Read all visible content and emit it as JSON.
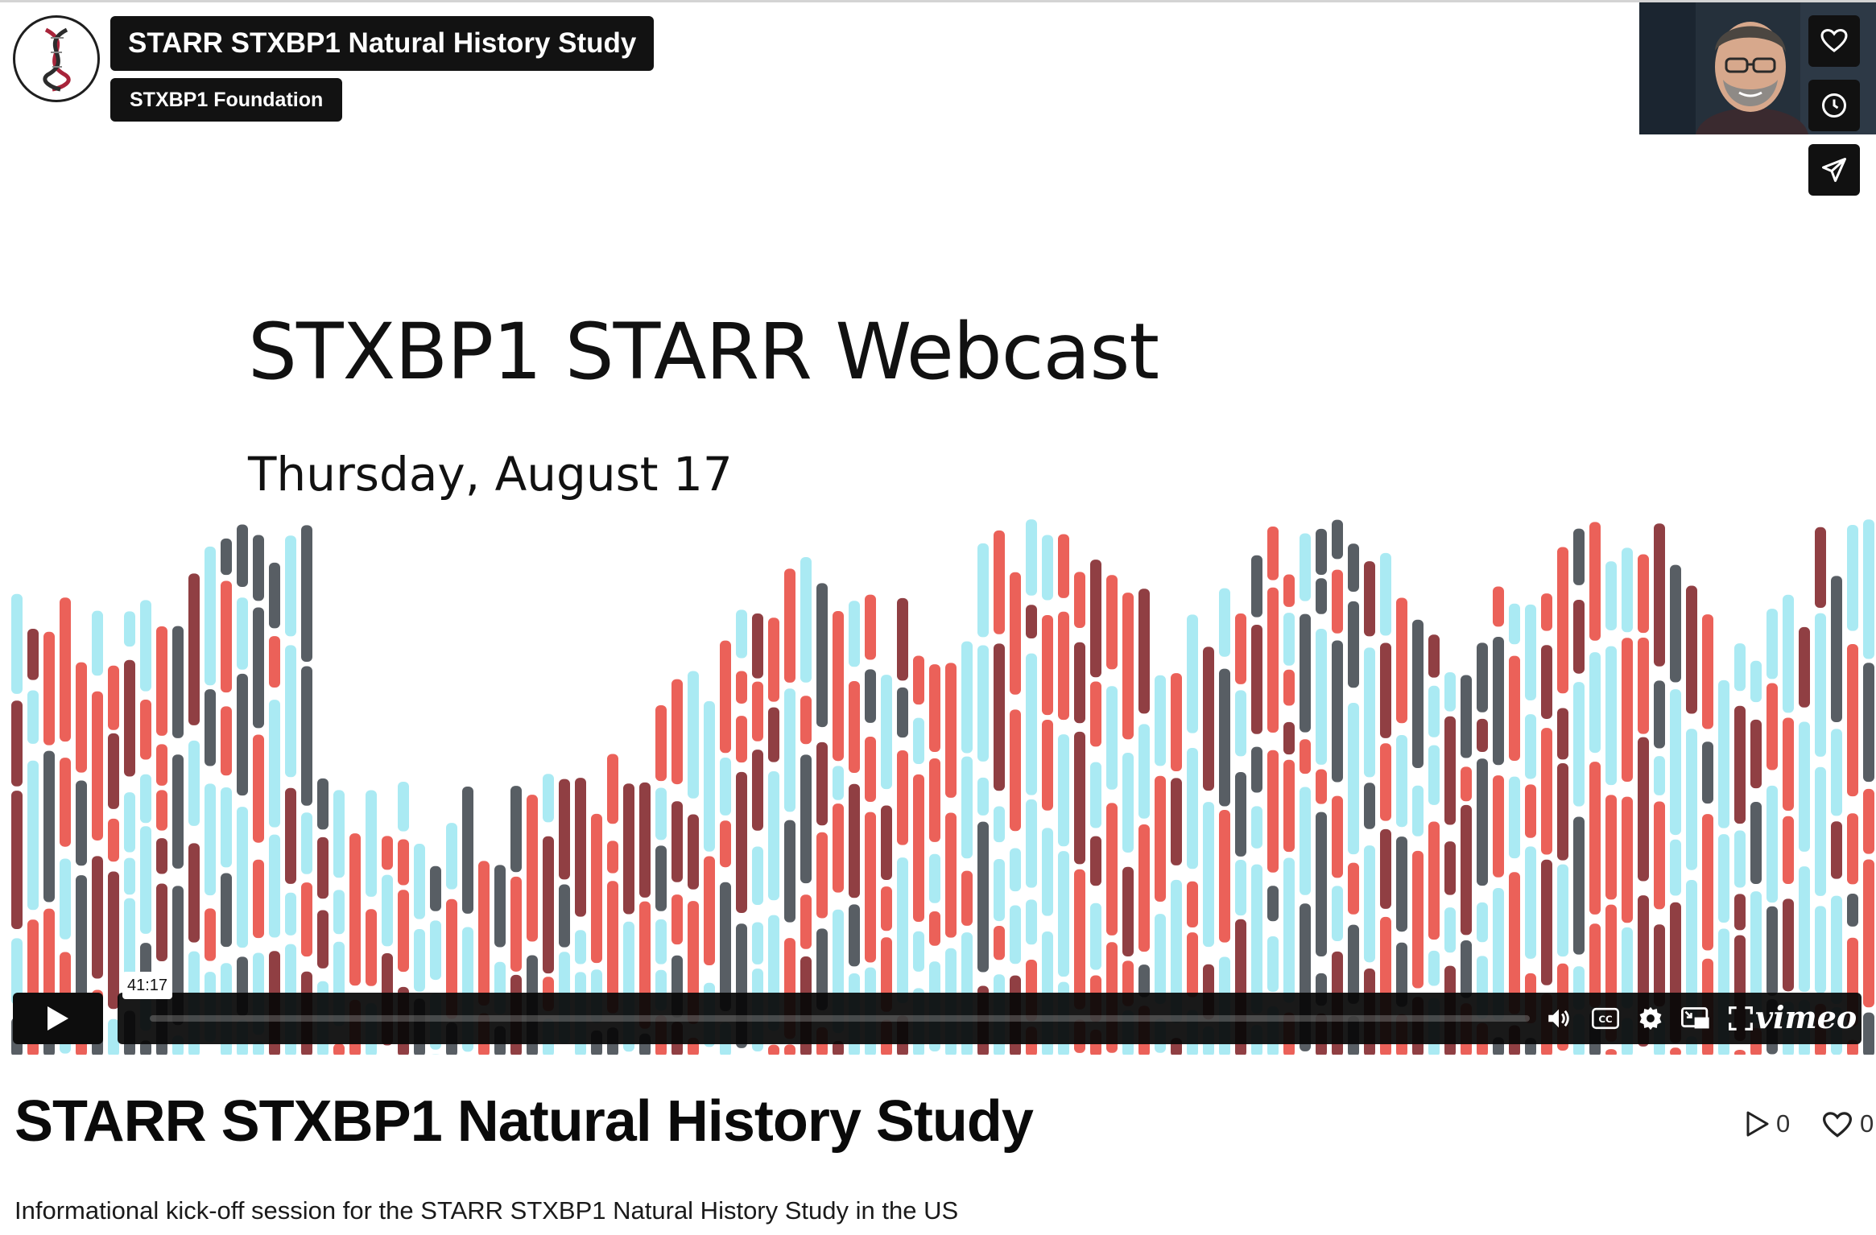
{
  "header": {
    "video_title": "STARR STXBP1 Natural History Study",
    "byline": "STXBP1 Foundation"
  },
  "slide": {
    "title": "STXBP1 STARR Webcast",
    "date": "Thursday, August 17"
  },
  "player": {
    "timecode": "41:17",
    "brand": "vimeo",
    "side_actions": [
      "heart-icon",
      "clock-icon",
      "send-icon"
    ],
    "control_icons": [
      "play-icon",
      "volume-icon",
      "cc-icon",
      "gear-icon",
      "pip-icon",
      "fullscreen-icon"
    ]
  },
  "info": {
    "title": "STARR STXBP1 Natural History Study",
    "description": "Informational kick-off session for the STARR STXBP1 Natural History Study in the US",
    "plays": "0",
    "likes": "0"
  },
  "colors": {
    "accent_red": "#e8453c",
    "dark_red": "#7d1d22",
    "slate": "#3b4249",
    "light_blue": "#8ee3ef",
    "player_bar": "#0d0d0d"
  }
}
